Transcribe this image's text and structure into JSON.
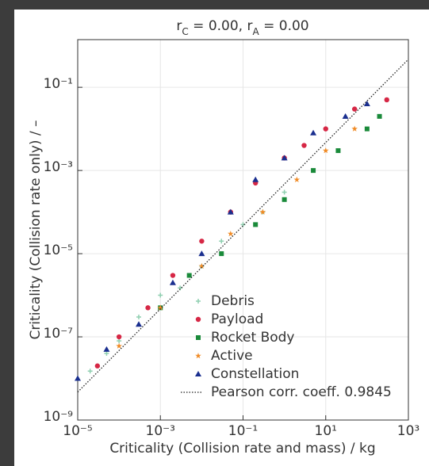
{
  "chart_data": {
    "type": "scatter",
    "title": "r_C = 0.00, r_A = 0.00",
    "x_label": "Criticality (Collision rate and mass) / kg",
    "y_label": "Criticality (Collision rate only) / –",
    "log_x": true,
    "log_y": true,
    "grid": true,
    "legend": "lower right",
    "xlim": [
      1e-05,
      1000
    ],
    "ylim": [
      1e-09,
      1.4
    ],
    "xticks": [
      {
        "value": 1e-05,
        "label": "10⁻⁵"
      },
      {
        "value": 0.001,
        "label": "10⁻³"
      },
      {
        "value": 0.1,
        "label": "10⁻¹"
      },
      {
        "value": 10,
        "label": "10¹"
      },
      {
        "value": 1000,
        "label": "10³"
      }
    ],
    "yticks": [
      {
        "value": 1e-09,
        "label": "10⁻⁹"
      },
      {
        "value": 1e-07,
        "label": "10⁻⁷"
      },
      {
        "value": 1e-05,
        "label": "10⁻⁵"
      },
      {
        "value": 0.001,
        "label": "10⁻³"
      },
      {
        "value": 0.1,
        "label": "10⁻¹"
      }
    ],
    "series": [
      {
        "name": "Debris",
        "color": "#8fcfb0",
        "marker": "plus",
        "x": [
          2e-05,
          5e-05,
          0.0001,
          0.0003,
          0.001,
          0.003,
          0.01,
          0.03,
          0.1,
          0.3,
          1
        ],
        "values": [
          1.5e-08,
          4e-08,
          8e-08,
          3e-07,
          1e-06,
          1.5e-06,
          5e-06,
          2e-05,
          5e-05,
          0.0001,
          0.0003
        ]
      },
      {
        "name": "Payload",
        "color": "#d62745",
        "marker": "circle",
        "x": [
          3e-05,
          0.0001,
          0.0005,
          0.002,
          0.01,
          0.05,
          0.2,
          1,
          3,
          10,
          50,
          300
        ],
        "values": [
          2e-08,
          1e-07,
          5e-07,
          3e-06,
          2e-05,
          0.0001,
          0.0005,
          0.002,
          0.004,
          0.01,
          0.03,
          0.05
        ]
      },
      {
        "name": "Rocket Body",
        "color": "#1a8a3a",
        "marker": "square",
        "x": [
          0.001,
          0.005,
          0.03,
          0.2,
          1,
          5,
          20,
          100,
          200
        ],
        "values": [
          5e-07,
          3e-06,
          1e-05,
          5e-05,
          0.0002,
          0.001,
          0.003,
          0.01,
          0.02
        ]
      },
      {
        "name": "Active",
        "color": "#f08a24",
        "marker": "star",
        "x": [
          0.0001,
          0.001,
          0.01,
          0.05,
          0.3,
          2,
          10,
          50
        ],
        "values": [
          6e-08,
          5e-07,
          5e-06,
          3e-05,
          0.0001,
          0.0006,
          0.003,
          0.01
        ]
      },
      {
        "name": "Constellation",
        "color": "#1a2f8f",
        "marker": "triangle",
        "x": [
          1e-05,
          5e-05,
          0.0003,
          0.002,
          0.01,
          0.05,
          0.2,
          1,
          5,
          30,
          100
        ],
        "values": [
          1e-08,
          5e-08,
          2e-07,
          2e-06,
          1e-05,
          0.0001,
          0.0006,
          0.002,
          0.008,
          0.02,
          0.04
        ]
      },
      {
        "name": "Pearson corr. coeff. 0.9845",
        "color": "#222222",
        "marker": "line",
        "linestyle": "dotted",
        "x": [
          1e-05,
          1000
        ],
        "values": [
          4.7e-09,
          0.47
        ]
      }
    ]
  }
}
